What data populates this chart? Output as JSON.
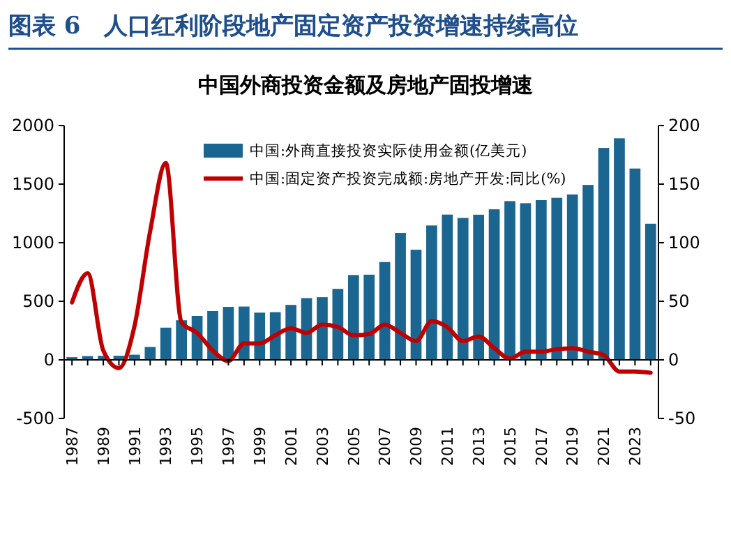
{
  "chart_data": {
    "type": "bar",
    "title": "图表 6　人口红利阶段地产固定资产投资增速持续高位",
    "subtitle": "中国外商投资金额及房地产固投增速",
    "categories": [
      "1987",
      null,
      "1989",
      null,
      "1991",
      null,
      "1993",
      null,
      "1995",
      null,
      "1997",
      null,
      "1999",
      null,
      "2001",
      null,
      "2003",
      null,
      "2005",
      null,
      "2007",
      null,
      "2009",
      null,
      "2011",
      null,
      "2013",
      null,
      "2015",
      null,
      "2017",
      null,
      "2019",
      null,
      "2021",
      null,
      "2023",
      null
    ],
    "series": [
      {
        "name": "中国:外商直接投资实际使用金额(亿美元)",
        "color": "#1a6690",
        "values": [
          23,
          32,
          34,
          35,
          44,
          110,
          275,
          338,
          375,
          417,
          452,
          455,
          403,
          407,
          469,
          527,
          535,
          606,
          724,
          727,
          835,
          1083,
          940,
          1147,
          1240,
          1211,
          1239,
          1285,
          1355,
          1337,
          1363,
          1383,
          1412,
          1493,
          1809,
          1891,
          1633,
          1162
        ]
      },
      {
        "name": "中国:固定资产投资完成额:房地产开发:同比(%)",
        "type": "line",
        "axis": "y2",
        "color": "#c00000",
        "values": [
          49,
          74,
          8,
          -7,
          29,
          110,
          168,
          32,
          23,
          8,
          -1,
          14,
          14,
          21,
          27,
          23,
          30,
          28,
          21,
          22,
          30,
          23,
          16,
          33,
          28,
          16,
          20,
          10,
          1,
          7,
          7,
          9,
          10,
          7,
          4,
          -10,
          -10,
          -11
        ]
      }
    ],
    "ylim": [
      -500,
      2000
    ],
    "yticks": [
      -500,
      0,
      500,
      1000,
      1500,
      2000
    ],
    "y2lim": [
      -50,
      200
    ],
    "y2ticks": [
      -50,
      0,
      50,
      100,
      150,
      200
    ],
    "legend": "top"
  }
}
